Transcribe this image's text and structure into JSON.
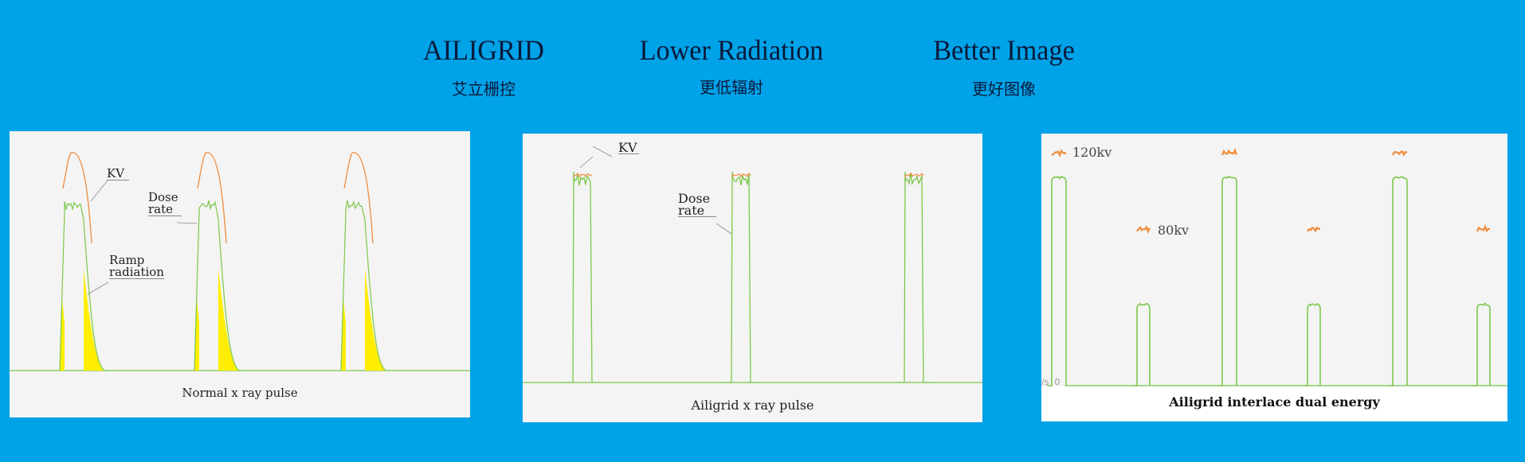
{
  "header": [
    {
      "en": "AILIGRID",
      "cn": "艾立栅控"
    },
    {
      "en": "Lower Radiation",
      "cn": "更低辐射"
    },
    {
      "en": "Better Image",
      "cn": "更好图像"
    }
  ],
  "colors": {
    "background": "#00a2e8",
    "panel": "#f4f4f4",
    "dose_rate": "#7cc84a",
    "kv": "#f08c3c",
    "ramp_radiation": "#ffee00"
  },
  "chart_data": [
    {
      "type": "line",
      "caption": "Normal x ray pulse",
      "pulses": 3,
      "series": [
        {
          "name": "KV"
        },
        {
          "name": "Dose rate"
        }
      ],
      "annotations": [
        "KV",
        "Dose\nrate",
        "Ramp\nradiation"
      ],
      "dose_rate_label": [
        "Dose",
        "rate"
      ],
      "ramp_label": [
        "Ramp",
        "radiation"
      ],
      "kv_label": "KV"
    },
    {
      "type": "line",
      "caption": "Ailigrid x ray pulse",
      "pulses": 3,
      "series": [
        {
          "name": "KV"
        },
        {
          "name": "Dose rate"
        }
      ],
      "kv_label": "KV",
      "dose_rate_label": [
        "Dose",
        "rate"
      ]
    },
    {
      "type": "line",
      "caption": "Ailigrid interlace dual energy",
      "pulse_sequence": [
        "120kv",
        "80kv",
        "120kv",
        "80kv",
        "120kv",
        "80kv"
      ],
      "high_label": "120kv",
      "low_label": "80kv",
      "axis_fragment": "/s  0"
    }
  ]
}
